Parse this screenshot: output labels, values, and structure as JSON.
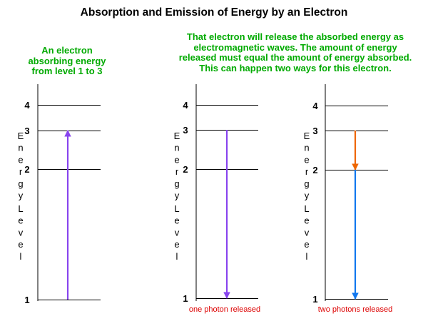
{
  "title": "Absorption and Emission of Energy by an Electron",
  "left_caption": "An electron\nabsorbing energy\nfrom level 1 to 3",
  "right_caption": "That electron will release the absorbed energy as\nelectromagnetic waves. The amount of energy\nreleased must equal the amount of energy absorbed.\nThis can happen two ways for this electron.",
  "axis_label_words": [
    "Energy",
    "Level"
  ],
  "level_labels": [
    "1",
    "2",
    "3",
    "4"
  ],
  "panels": [
    {
      "footer": ""
    },
    {
      "footer": "one photon released"
    },
    {
      "footer": "two photons released"
    }
  ],
  "colors": {
    "caption_green": "#00aa00",
    "absorb_arrow": "#8844ee",
    "emit_single_arrow": "#8844ee",
    "emit_step1_arrow": "#ee6600",
    "emit_step2_arrow": "#1177ee",
    "footer_red": "#dd0000"
  }
}
